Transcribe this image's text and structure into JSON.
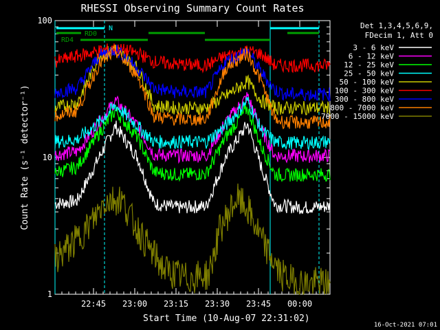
{
  "chart_data": {
    "type": "line",
    "title": "RHESSI Observing Summary Count Rates",
    "xlabel": "Start Time (10-Aug-07 22:31:02)",
    "ylabel": "Count Rate (s⁻¹ detector⁻¹)",
    "y_scale": "log",
    "ylim": [
      1,
      100
    ],
    "y_tick_labels": [
      "1",
      "10",
      "100"
    ],
    "x_tick_labels": [
      "22:45",
      "23:00",
      "23:15",
      "23:30",
      "23:45",
      "00:00"
    ],
    "legend_header": [
      "Det 1,3,4,5,6,9,",
      "FDecim 1, Att 0"
    ],
    "legend_position": "right",
    "grid": false,
    "x_range_minutes": [
      0,
      100
    ],
    "x_tick_minutes": [
      14,
      29,
      44,
      59,
      74,
      89
    ],
    "series": [
      {
        "name": "3 - 6 keV",
        "color": "#ffffff",
        "x": [
          0,
          8,
          16,
          22,
          30,
          36,
          44,
          55,
          62,
          70,
          75,
          80,
          84,
          90,
          100
        ],
        "values": [
          4.6,
          4.8,
          10,
          17,
          10,
          4.6,
          4.3,
          4.4,
          10,
          17.5,
          8.5,
          4.5,
          4.4,
          4.3,
          4.4
        ]
      },
      {
        "name": "6 - 12 keV",
        "color": "#ff00ff",
        "x": [
          0,
          8,
          16,
          22,
          30,
          36,
          44,
          55,
          62,
          70,
          75,
          80,
          84,
          90,
          100
        ],
        "values": [
          10.5,
          11,
          18,
          26,
          17,
          10.5,
          10.3,
          10.3,
          18,
          28,
          16,
          10.3,
          10.3,
          10.2,
          10.3
        ]
      },
      {
        "name": "12 - 25 keV",
        "color": "#00ff00",
        "x": [
          0,
          8,
          16,
          22,
          30,
          36,
          44,
          55,
          62,
          70,
          75,
          80,
          84,
          90,
          100
        ],
        "values": [
          7.8,
          8.5,
          15,
          22,
          14,
          7.8,
          7.5,
          7.6,
          14,
          23,
          12,
          7.5,
          7.4,
          7.5,
          7.5
        ]
      },
      {
        "name": "25 - 50 keV",
        "color": "#00ffff",
        "x": [
          0,
          8,
          16,
          22,
          30,
          36,
          44,
          55,
          62,
          70,
          75,
          80,
          84,
          90,
          100
        ],
        "values": [
          13,
          13.5,
          18,
          24,
          17,
          13,
          13,
          13,
          17,
          26,
          16,
          13,
          12.8,
          12.8,
          13
        ]
      },
      {
        "name": "50 - 100 keV",
        "color": "#cccc00",
        "x": [
          0,
          8,
          16,
          22,
          30,
          36,
          44,
          55,
          62,
          70,
          75,
          80,
          84,
          90,
          100
        ],
        "values": [
          23,
          25,
          55,
          62,
          45,
          24,
          23,
          23,
          28,
          36,
          26,
          23,
          23,
          23,
          23
        ]
      },
      {
        "name": "100 - 300 keV",
        "color": "#ff0000",
        "x": [
          0,
          8,
          16,
          22,
          30,
          36,
          44,
          55,
          62,
          70,
          75,
          80,
          84,
          90,
          100
        ],
        "values": [
          50,
          55,
          60,
          62,
          58,
          50,
          48,
          47,
          55,
          60,
          57,
          47,
          47,
          47,
          47
        ]
      },
      {
        "name": "300 - 800 keV",
        "color": "#0000ff",
        "x": [
          0,
          8,
          16,
          22,
          30,
          36,
          44,
          55,
          62,
          70,
          75,
          80,
          84,
          90,
          100
        ],
        "values": [
          30,
          32,
          55,
          62,
          45,
          32,
          30,
          30,
          50,
          60,
          42,
          31,
          29,
          29,
          29
        ]
      },
      {
        "name": "800 - 7000 keV",
        "color": "#ff8000",
        "x": [
          0,
          8,
          16,
          22,
          30,
          36,
          44,
          55,
          62,
          70,
          75,
          80,
          84,
          90,
          100
        ],
        "values": [
          20,
          22,
          48,
          60,
          40,
          20,
          19,
          19,
          45,
          58,
          36,
          19,
          18,
          18,
          18
        ]
      },
      {
        "name": "7000 - 15000 keV",
        "color": "#808000",
        "x": [
          0,
          8,
          14,
          18,
          24,
          28,
          34,
          40,
          48,
          56,
          60,
          66,
          70,
          76,
          82,
          88,
          100
        ],
        "values": [
          1.8,
          2.5,
          3.5,
          4.8,
          5,
          3.5,
          2.2,
          1.5,
          1.3,
          1.4,
          3,
          5,
          4.2,
          2.3,
          1.4,
          1.2,
          1.2
        ]
      }
    ],
    "annotations": {
      "rd0": {
        "label": "RD0",
        "color": "#00a000"
      },
      "rd4": {
        "label": "RD4",
        "color": "#00a000"
      },
      "n": {
        "label": "N",
        "color": "#00ffff"
      }
    },
    "timestamp": "16-Oct-2021 07:01"
  }
}
